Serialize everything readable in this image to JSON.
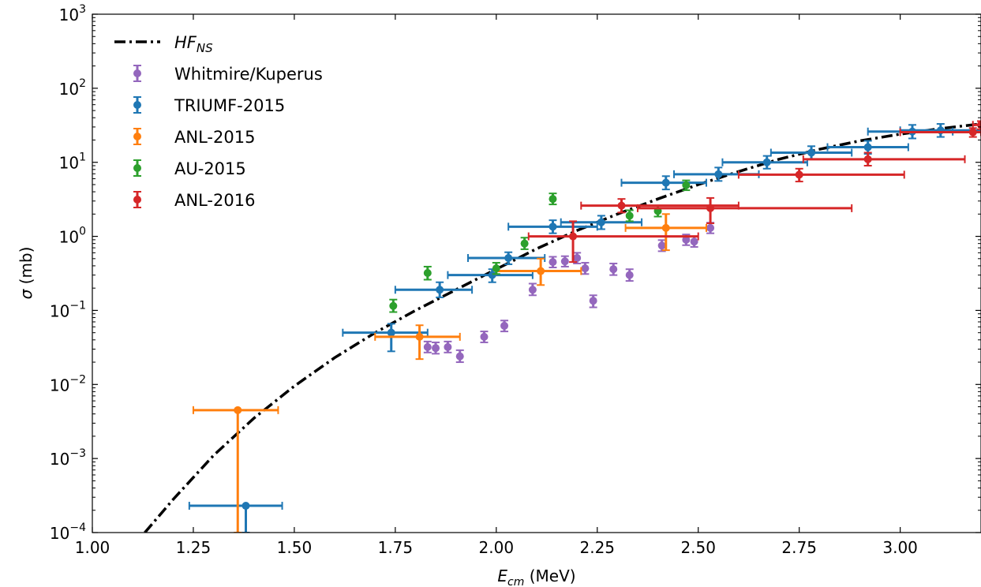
{
  "chart_data": {
    "type": "scatter",
    "xlabel": "E",
    "xlabel_sub": "cm",
    "xlabel_unit": " (MeV)",
    "ylabel_symbol": "σ",
    "ylabel_unit": " (mb)",
    "xlim": [
      1.0,
      3.2
    ],
    "ylim": [
      0.0001,
      1000
    ],
    "yscale": "log",
    "grid": false,
    "legend_position": "top-left",
    "x_ticks": [
      {
        "value": 1.0,
        "label": "1.00"
      },
      {
        "value": 1.25,
        "label": "1.25"
      },
      {
        "value": 1.5,
        "label": "1.50"
      },
      {
        "value": 1.75,
        "label": "1.75"
      },
      {
        "value": 2.0,
        "label": "2.00"
      },
      {
        "value": 2.25,
        "label": "2.25"
      },
      {
        "value": 2.5,
        "label": "2.50"
      },
      {
        "value": 2.75,
        "label": "2.75"
      },
      {
        "value": 3.0,
        "label": "3.00"
      }
    ],
    "y_ticks": [
      {
        "value": 0.0001,
        "base": "10",
        "exp": "−4"
      },
      {
        "value": 0.001,
        "base": "10",
        "exp": "−3"
      },
      {
        "value": 0.01,
        "base": "10",
        "exp": "−2"
      },
      {
        "value": 0.1,
        "base": "10",
        "exp": "−1"
      },
      {
        "value": 1,
        "base": "10",
        "exp": "0"
      },
      {
        "value": 10,
        "base": "10",
        "exp": "1"
      },
      {
        "value": 100,
        "base": "10",
        "exp": "2"
      },
      {
        "value": 1000,
        "base": "10",
        "exp": "3"
      }
    ],
    "model": {
      "name": "HF",
      "name_sub": "NS",
      "color": "#000000",
      "x": [
        1.13,
        1.2,
        1.3,
        1.4,
        1.5,
        1.6,
        1.7,
        1.8,
        1.9,
        2.0,
        2.1,
        2.2,
        2.3,
        2.4,
        2.5,
        2.6,
        2.7,
        2.8,
        2.9,
        3.0,
        3.1,
        3.2
      ],
      "y": [
        0.0001,
        0.00028,
        0.0011,
        0.0035,
        0.0095,
        0.023,
        0.05,
        0.1,
        0.19,
        0.36,
        0.68,
        1.2,
        2.0,
        3.2,
        5.0,
        7.5,
        11.0,
        15.0,
        19.5,
        24.0,
        28.5,
        33.0
      ]
    },
    "series": [
      {
        "name": "Whitmire/Kuperus",
        "color": "#9467bd",
        "points": [
          {
            "x": 1.83,
            "y": 0.032,
            "lo": 0.027,
            "hi": 0.038
          },
          {
            "x": 1.85,
            "y": 0.031,
            "lo": 0.026,
            "hi": 0.037
          },
          {
            "x": 1.88,
            "y": 0.032,
            "lo": 0.027,
            "hi": 0.038
          },
          {
            "x": 1.91,
            "y": 0.024,
            "lo": 0.02,
            "hi": 0.029
          },
          {
            "x": 1.97,
            "y": 0.044,
            "lo": 0.037,
            "hi": 0.052
          },
          {
            "x": 2.02,
            "y": 0.062,
            "lo": 0.052,
            "hi": 0.073
          },
          {
            "x": 2.09,
            "y": 0.19,
            "lo": 0.16,
            "hi": 0.23
          },
          {
            "x": 2.14,
            "y": 0.45,
            "lo": 0.38,
            "hi": 0.53
          },
          {
            "x": 2.17,
            "y": 0.46,
            "lo": 0.39,
            "hi": 0.54
          },
          {
            "x": 2.2,
            "y": 0.51,
            "lo": 0.43,
            "hi": 0.6
          },
          {
            "x": 2.22,
            "y": 0.37,
            "lo": 0.31,
            "hi": 0.44
          },
          {
            "x": 2.24,
            "y": 0.135,
            "lo": 0.11,
            "hi": 0.16
          },
          {
            "x": 2.29,
            "y": 0.36,
            "lo": 0.3,
            "hi": 0.43
          },
          {
            "x": 2.33,
            "y": 0.3,
            "lo": 0.25,
            "hi": 0.36
          },
          {
            "x": 2.41,
            "y": 0.75,
            "lo": 0.63,
            "hi": 0.89
          },
          {
            "x": 2.47,
            "y": 0.9,
            "lo": 0.76,
            "hi": 1.06
          },
          {
            "x": 2.49,
            "y": 0.85,
            "lo": 0.72,
            "hi": 1.0
          },
          {
            "x": 2.53,
            "y": 1.3,
            "lo": 1.1,
            "hi": 1.53
          }
        ]
      },
      {
        "name": "TRIUMF-2015",
        "color": "#1f77b4",
        "points": [
          {
            "x": 1.38,
            "y": 0.00023,
            "lo": 0.0001,
            "hi": 0.00023,
            "xlo": 1.24,
            "xhi": 1.47
          },
          {
            "x": 1.74,
            "y": 0.05,
            "lo": 0.028,
            "hi": 0.066,
            "xlo": 1.62,
            "xhi": 1.83
          },
          {
            "x": 1.86,
            "y": 0.19,
            "lo": 0.15,
            "hi": 0.24,
            "xlo": 1.75,
            "xhi": 1.94
          },
          {
            "x": 1.99,
            "y": 0.3,
            "lo": 0.24,
            "hi": 0.36,
            "xlo": 1.88,
            "xhi": 2.09
          },
          {
            "x": 2.03,
            "y": 0.51,
            "lo": 0.42,
            "hi": 0.61,
            "xlo": 1.93,
            "xhi": 2.12
          },
          {
            "x": 2.14,
            "y": 1.35,
            "lo": 1.1,
            "hi": 1.65,
            "xlo": 2.03,
            "xhi": 2.25
          },
          {
            "x": 2.26,
            "y": 1.55,
            "lo": 1.25,
            "hi": 1.9,
            "xlo": 2.16,
            "xhi": 2.36
          },
          {
            "x": 2.42,
            "y": 5.3,
            "lo": 4.3,
            "hi": 6.5,
            "xlo": 2.31,
            "xhi": 2.52
          },
          {
            "x": 2.55,
            "y": 6.9,
            "lo": 5.6,
            "hi": 8.5,
            "xlo": 2.44,
            "xhi": 2.65
          },
          {
            "x": 2.67,
            "y": 10.0,
            "lo": 8.2,
            "hi": 12.2,
            "xlo": 2.56,
            "xhi": 2.77
          },
          {
            "x": 2.78,
            "y": 13.5,
            "lo": 11.0,
            "hi": 16.5,
            "xlo": 2.68,
            "xhi": 2.88
          },
          {
            "x": 2.92,
            "y": 16.0,
            "lo": 13.0,
            "hi": 19.5,
            "xlo": 2.82,
            "xhi": 3.02
          },
          {
            "x": 3.03,
            "y": 26.0,
            "lo": 21.0,
            "hi": 32.0,
            "xlo": 2.92,
            "xhi": 3.13
          },
          {
            "x": 3.1,
            "y": 27.0,
            "lo": 22.0,
            "hi": 33.0,
            "xlo": 3.0,
            "xhi": 3.2
          }
        ]
      },
      {
        "name": "ANL-2015",
        "color": "#ff7f0e",
        "points": [
          {
            "x": 1.36,
            "y": 0.0045,
            "lo": 0.0001,
            "hi": 0.0045,
            "xlo": 1.25,
            "xhi": 1.46
          },
          {
            "x": 1.81,
            "y": 0.044,
            "lo": 0.022,
            "hi": 0.063,
            "xlo": 1.7,
            "xhi": 1.91
          },
          {
            "x": 2.11,
            "y": 0.34,
            "lo": 0.22,
            "hi": 0.5,
            "xlo": 2.0,
            "xhi": 2.21
          },
          {
            "x": 2.42,
            "y": 1.3,
            "lo": 0.65,
            "hi": 2.0,
            "xlo": 2.32,
            "xhi": 2.52
          }
        ]
      },
      {
        "name": "AU-2015",
        "color": "#2ca02c",
        "points": [
          {
            "x": 1.745,
            "y": 0.115,
            "lo": 0.095,
            "hi": 0.14
          },
          {
            "x": 1.83,
            "y": 0.32,
            "lo": 0.26,
            "hi": 0.39
          },
          {
            "x": 2.0,
            "y": 0.37,
            "lo": 0.31,
            "hi": 0.44
          },
          {
            "x": 2.07,
            "y": 0.8,
            "lo": 0.67,
            "hi": 0.96
          },
          {
            "x": 2.14,
            "y": 3.2,
            "lo": 2.7,
            "hi": 3.8
          },
          {
            "x": 2.33,
            "y": 1.9,
            "lo": 1.6,
            "hi": 2.25
          },
          {
            "x": 2.4,
            "y": 2.2,
            "lo": 1.85,
            "hi": 2.6
          },
          {
            "x": 2.47,
            "y": 4.9,
            "lo": 4.2,
            "hi": 5.7
          }
        ]
      },
      {
        "name": "ANL-2016",
        "color": "#d62728",
        "points": [
          {
            "x": 2.19,
            "y": 1.0,
            "lo": 0.45,
            "hi": 1.6,
            "xlo": 2.08,
            "xhi": 2.5
          },
          {
            "x": 2.31,
            "y": 2.6,
            "lo": 2.1,
            "hi": 3.2,
            "xlo": 2.21,
            "xhi": 2.6
          },
          {
            "x": 2.53,
            "y": 2.4,
            "lo": 1.5,
            "hi": 3.3,
            "xlo": 2.35,
            "xhi": 2.88
          },
          {
            "x": 2.75,
            "y": 6.8,
            "lo": 5.5,
            "hi": 8.2,
            "xlo": 2.6,
            "xhi": 3.01
          },
          {
            "x": 2.92,
            "y": 11.0,
            "lo": 9.0,
            "hi": 13.5,
            "xlo": 2.76,
            "xhi": 3.16
          },
          {
            "x": 3.18,
            "y": 25.5,
            "lo": 22.0,
            "hi": 29.0,
            "xlo": 3.0,
            "xhi": 3.2
          },
          {
            "x": 3.2,
            "y": 32.0,
            "lo": 28.0,
            "hi": 36.0,
            "xlo": 3.18,
            "xhi": 3.2
          }
        ]
      }
    ]
  }
}
